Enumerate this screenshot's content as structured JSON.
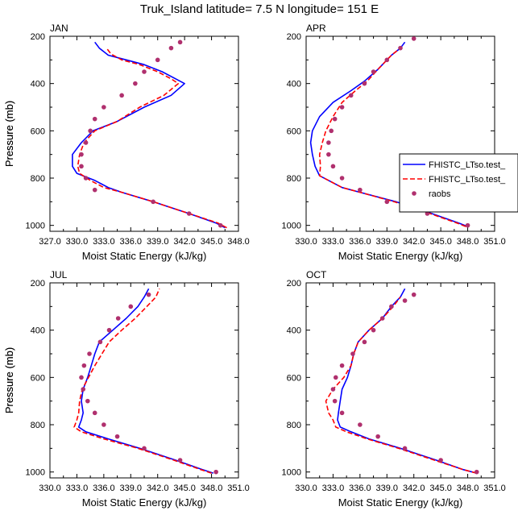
{
  "title": "Truk_Island  latitude= 7.5 N longitude= 151 E",
  "colors": {
    "model1": "#0000ff",
    "model2": "#ff0000",
    "obs": "#b0306e"
  },
  "legend": {
    "entries": [
      "FHISTC_LTso.test_",
      "FHISTC_LTso.test_",
      "raobs"
    ]
  },
  "chart_data": [
    {
      "type": "line",
      "panel": "JAN",
      "xlabel": "Moist Static Energy (kJ/kg)",
      "ylabel": "Pressure (mb)",
      "xlim": [
        327.0,
        348.0
      ],
      "xticks": [
        "327.0",
        "330.0",
        "333.0",
        "336.0",
        "339.0",
        "342.0",
        "345.0",
        "348.0"
      ],
      "ylim": [
        1025,
        200
      ],
      "yticks": [
        "200",
        "400",
        "600",
        "800",
        "1000"
      ],
      "series": [
        {
          "name": "FHISTC_LTso.test_",
          "kind": "model1",
          "x": [
            346.5,
            345.5,
            342.5,
            338.5,
            335.0,
            333.5,
            332.0,
            330.0,
            329.5,
            329.5,
            330.5,
            331.8,
            334.5,
            337.5,
            340.5,
            342.0,
            341.0,
            339.5,
            337.5,
            335.5,
            333.5,
            332.5,
            332.0
          ],
          "y": [
            1010,
            990,
            950,
            900,
            860,
            840,
            810,
            780,
            750,
            700,
            650,
            600,
            560,
            500,
            450,
            400,
            380,
            350,
            320,
            300,
            280,
            250,
            225
          ]
        },
        {
          "name": "FHISTC_LTso.test_",
          "kind": "model2",
          "x": [
            346.7,
            345.7,
            342.5,
            338.5,
            335.0,
            333.0,
            331.5,
            330.3,
            330.1,
            330.3,
            330.8,
            332.0,
            334.5,
            337.0,
            339.7,
            341.3,
            340.5,
            339.0,
            337.0,
            335.0,
            333.8,
            333.3
          ],
          "y": [
            1010,
            990,
            950,
            900,
            860,
            840,
            810,
            780,
            750,
            700,
            650,
            600,
            560,
            500,
            450,
            400,
            380,
            350,
            320,
            300,
            275,
            250
          ]
        },
        {
          "name": "raobs",
          "kind": "obs",
          "x": [
            346.0,
            342.5,
            338.5,
            332.0,
            331.0,
            330.5,
            330.5,
            331.0,
            331.5,
            332.0,
            333.0,
            335.0,
            336.5,
            337.5,
            339.0,
            340.5,
            341.5
          ],
          "y": [
            1000,
            950,
            900,
            850,
            800,
            750,
            700,
            650,
            600,
            550,
            500,
            450,
            400,
            350,
            300,
            250,
            225
          ]
        }
      ]
    },
    {
      "type": "line",
      "panel": "APR",
      "xlabel": "Moist Static Energy (kJ/kg)",
      "ylabel": "Pressure (mb)",
      "xlim": [
        330.0,
        351.0
      ],
      "xticks": [
        "330.0",
        "333.0",
        "336.0",
        "339.0",
        "342.0",
        "345.0",
        "348.0",
        "351.0"
      ],
      "ylim": [
        1025,
        200
      ],
      "yticks": [
        "200",
        "400",
        "600",
        "800",
        "1000"
      ],
      "series": [
        {
          "name": "FHISTC_LTso.test_",
          "kind": "model1",
          "x": [
            348.0,
            347.0,
            344.0,
            340.0,
            336.0,
            334.0,
            332.5,
            331.5,
            331.0,
            330.7,
            330.5,
            330.7,
            331.5,
            333.0,
            335.0,
            336.5,
            338.0,
            339.5,
            340.5,
            341.0
          ],
          "y": [
            1005,
            990,
            950,
            900,
            860,
            840,
            810,
            790,
            750,
            700,
            650,
            600,
            540,
            480,
            430,
            390,
            340,
            280,
            250,
            225
          ]
        },
        {
          "name": "FHISTC_LTso.test_",
          "kind": "model2",
          "x": [
            347.8,
            346.8,
            343.8,
            339.8,
            336.0,
            334.0,
            332.5,
            331.5,
            331.6,
            331.5,
            331.8,
            332.2,
            333.0,
            334.0,
            335.5,
            336.8,
            338.0,
            339.5,
            340.5
          ],
          "y": [
            1005,
            990,
            950,
            900,
            860,
            840,
            810,
            790,
            750,
            700,
            650,
            600,
            540,
            480,
            430,
            390,
            340,
            280,
            250
          ]
        },
        {
          "name": "raobs",
          "kind": "obs",
          "x": [
            348.0,
            343.5,
            339.0,
            336.0,
            334.0,
            333.0,
            332.5,
            332.5,
            332.8,
            333.2,
            334.0,
            335.0,
            336.5,
            337.5,
            339.0,
            340.5,
            342.0
          ],
          "y": [
            1000,
            950,
            900,
            850,
            800,
            750,
            700,
            650,
            600,
            550,
            500,
            450,
            400,
            350,
            300,
            250,
            210
          ]
        }
      ]
    },
    {
      "type": "line",
      "panel": "JUL",
      "xlabel": "Moist Static Energy (kJ/kg)",
      "ylabel": "Pressure (mb)",
      "xlim": [
        330.0,
        351.0
      ],
      "xticks": [
        "330.0",
        "333.0",
        "336.0",
        "339.0",
        "342.0",
        "345.0",
        "348.0",
        "351.0"
      ],
      "ylim": [
        1025,
        200
      ],
      "yticks": [
        "200",
        "400",
        "600",
        "800",
        "1000"
      ],
      "series": [
        {
          "name": "FHISTC_LTso.test_",
          "kind": "model1",
          "x": [
            348.2,
            347.0,
            344.0,
            340.0,
            336.5,
            334.0,
            333.2,
            333.5,
            333.7,
            333.5,
            333.7,
            334.2,
            334.6,
            335.0,
            335.5,
            337.0,
            338.5,
            339.8,
            340.5,
            341.0
          ],
          "y": [
            1005,
            990,
            950,
            900,
            860,
            830,
            810,
            780,
            750,
            700,
            650,
            600,
            550,
            500,
            450,
            400,
            350,
            300,
            260,
            225
          ]
        },
        {
          "name": "FHISTC_LTso.test_",
          "kind": "model2",
          "x": [
            348.0,
            346.8,
            343.8,
            339.8,
            336.0,
            333.5,
            332.7,
            333.0,
            333.2,
            333.3,
            333.6,
            334.3,
            335.0,
            335.8,
            336.6,
            338.0,
            339.5,
            340.8,
            341.8,
            342.2
          ],
          "y": [
            1005,
            990,
            950,
            900,
            860,
            830,
            810,
            780,
            750,
            700,
            650,
            600,
            550,
            500,
            450,
            400,
            350,
            300,
            260,
            225
          ]
        },
        {
          "name": "raobs",
          "kind": "obs",
          "x": [
            348.5,
            344.5,
            340.5,
            337.5,
            336.0,
            335.0,
            334.2,
            333.7,
            333.5,
            333.8,
            334.4,
            335.6,
            336.6,
            337.6,
            339.0,
            341.0
          ],
          "y": [
            1000,
            950,
            900,
            850,
            800,
            750,
            700,
            650,
            600,
            550,
            500,
            450,
            400,
            350,
            300,
            250
          ]
        }
      ]
    },
    {
      "type": "line",
      "panel": "OCT",
      "xlabel": "Moist Static Energy (kJ/kg)",
      "ylabel": "Pressure (mb)",
      "xlim": [
        330.0,
        351.0
      ],
      "xticks": [
        "330.0",
        "333.0",
        "336.0",
        "339.0",
        "342.0",
        "345.0",
        "348.0",
        "351.0"
      ],
      "ylim": [
        1025,
        200
      ],
      "yticks": [
        "200",
        "400",
        "600",
        "800",
        "1000"
      ],
      "series": [
        {
          "name": "FHISTC_LTso.test_",
          "kind": "model1",
          "x": [
            349.0,
            347.5,
            344.5,
            340.5,
            337.0,
            335.0,
            333.8,
            333.5,
            333.6,
            333.8,
            334.0,
            334.6,
            335.0,
            335.3,
            335.8,
            337.0,
            338.5,
            339.5,
            340.5,
            341.0
          ],
          "y": [
            1005,
            990,
            950,
            900,
            860,
            830,
            810,
            780,
            750,
            700,
            650,
            600,
            550,
            500,
            450,
            400,
            350,
            300,
            260,
            225
          ]
        },
        {
          "name": "FHISTC_LTso.test_",
          "kind": "model2",
          "x": [
            349.0,
            347.5,
            344.3,
            340.3,
            336.8,
            334.5,
            333.3,
            333.0,
            332.5,
            332.2,
            333.0,
            334.2,
            335.0,
            335.3,
            335.8,
            337.0,
            338.5,
            339.7,
            340.5
          ],
          "y": [
            1005,
            990,
            950,
            900,
            860,
            830,
            810,
            780,
            750,
            700,
            650,
            600,
            550,
            500,
            450,
            400,
            350,
            300,
            260
          ]
        },
        {
          "name": "raobs",
          "kind": "obs",
          "x": [
            349.0,
            345.0,
            341.0,
            338.0,
            336.0,
            334.0,
            333.2,
            333.0,
            333.3,
            334.0,
            335.2,
            336.5,
            337.5,
            338.5,
            339.5,
            341.0,
            342.0
          ],
          "y": [
            1000,
            950,
            900,
            850,
            800,
            750,
            700,
            650,
            600,
            550,
            500,
            450,
            400,
            350,
            300,
            275,
            250
          ]
        }
      ]
    }
  ]
}
